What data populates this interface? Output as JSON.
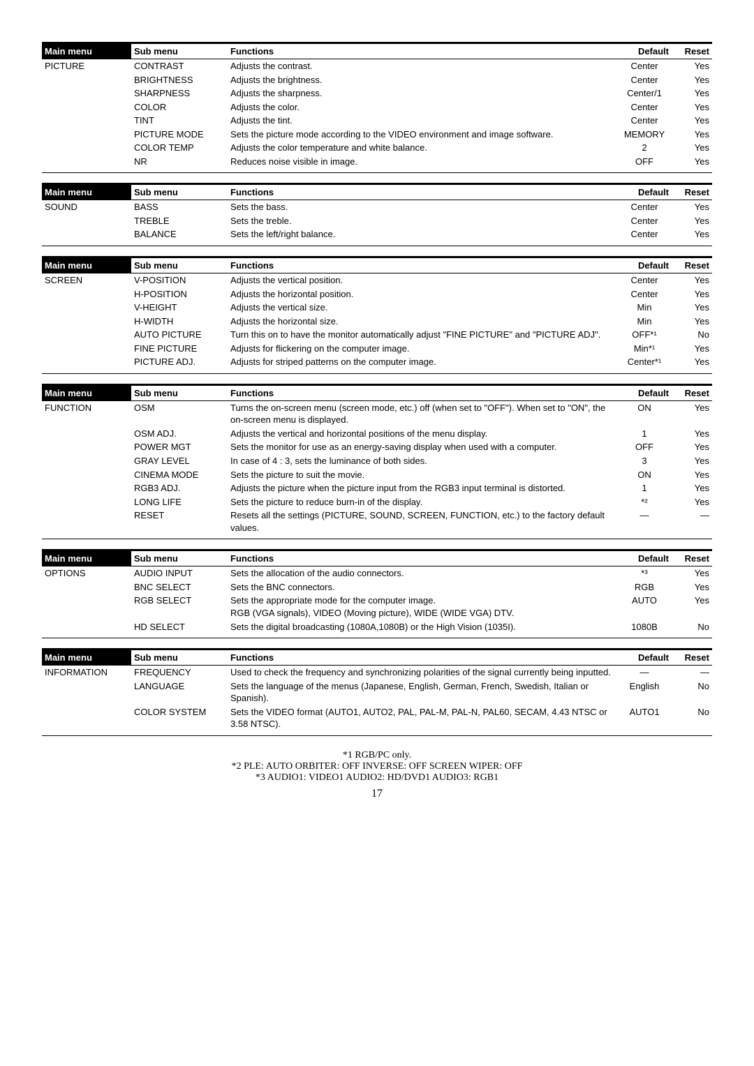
{
  "headers": {
    "main": "Main menu",
    "sub": "Sub menu",
    "func": "Functions",
    "def": "Default",
    "reset": "Reset"
  },
  "tables": [
    {
      "main": "PICTURE",
      "rows": [
        {
          "sub": "CONTRAST",
          "func": "Adjusts the contrast.",
          "def": "Center",
          "reset": "Yes"
        },
        {
          "sub": "BRIGHTNESS",
          "func": "Adjusts the brightness.",
          "def": "Center",
          "reset": "Yes"
        },
        {
          "sub": "SHARPNESS",
          "func": "Adjusts the sharpness.",
          "def": "Center/1",
          "reset": "Yes"
        },
        {
          "sub": "COLOR",
          "func": "Adjusts the color.",
          "def": "Center",
          "reset": "Yes"
        },
        {
          "sub": "TINT",
          "func": "Adjusts the tint.",
          "def": "Center",
          "reset": "Yes"
        },
        {
          "sub": "PICTURE MODE",
          "func": "Sets the picture mode according to the VIDEO environment and image software.",
          "def": "MEMORY",
          "reset": "Yes"
        },
        {
          "sub": "COLOR TEMP",
          "func": "Adjusts the color temperature and white balance.",
          "def": "2",
          "reset": "Yes"
        },
        {
          "sub": "NR",
          "func": "Reduces noise visible in image.",
          "def": "OFF",
          "reset": "Yes"
        }
      ]
    },
    {
      "main": "SOUND",
      "rows": [
        {
          "sub": "BASS",
          "func": "Sets the bass.",
          "def": "Center",
          "reset": "Yes"
        },
        {
          "sub": "TREBLE",
          "func": "Sets the treble.",
          "def": "Center",
          "reset": "Yes"
        },
        {
          "sub": "BALANCE",
          "func": "Sets the left/right balance.",
          "def": "Center",
          "reset": "Yes"
        }
      ]
    },
    {
      "main": "SCREEN",
      "rows": [
        {
          "sub": "V-POSITION",
          "func": "Adjusts the vertical position.",
          "def": "Center",
          "reset": "Yes"
        },
        {
          "sub": "H-POSITION",
          "func": "Adjusts the horizontal position.",
          "def": "Center",
          "reset": "Yes"
        },
        {
          "sub": "V-HEIGHT",
          "func": "Adjusts the vertical size.",
          "def": "Min",
          "reset": "Yes"
        },
        {
          "sub": "H-WIDTH",
          "func": "Adjusts the horizontal size.",
          "def": "Min",
          "reset": "Yes"
        },
        {
          "sub": "AUTO PICTURE",
          "func": "Turn this on to have the monitor automatically adjust \"FINE PICTURE\" and \"PICTURE ADJ\".",
          "def": "OFF*¹",
          "reset": "No"
        },
        {
          "sub": "FINE PICTURE",
          "func": "Adjusts for flickering on the computer image.",
          "def": "Min*¹",
          "reset": "Yes"
        },
        {
          "sub": "PICTURE ADJ.",
          "func": "Adjusts for striped patterns on the computer image.",
          "def": "Center*¹",
          "reset": "Yes"
        }
      ]
    },
    {
      "main": "FUNCTION",
      "rows": [
        {
          "sub": "OSM",
          "func": "Turns the on-screen menu (screen mode, etc.) off (when set to \"OFF\"). When set to \"ON\", the on-screen menu is displayed.",
          "def": "ON",
          "reset": "Yes"
        },
        {
          "sub": "OSM ADJ.",
          "func": "Adjusts the vertical and horizontal positions of the menu display.",
          "def": "1",
          "reset": "Yes"
        },
        {
          "sub": "POWER MGT",
          "func": "Sets the monitor for use as an energy-saving display when used with a computer.",
          "def": "OFF",
          "reset": "Yes"
        },
        {
          "sub": "GRAY LEVEL",
          "func": "In case of 4 : 3, sets the luminance of both sides.",
          "def": "3",
          "reset": "Yes"
        },
        {
          "sub": "CINEMA MODE",
          "func": "Sets the picture to suit the movie.",
          "def": "ON",
          "reset": "Yes"
        },
        {
          "sub": "RGB3 ADJ.",
          "func": "Adjusts the picture when the picture input from the RGB3 input terminal is distorted.",
          "def": "1",
          "reset": "Yes"
        },
        {
          "sub": "LONG LIFE",
          "func": "Sets the picture to reduce burn-in of the display.",
          "def": "*²",
          "reset": "Yes"
        },
        {
          "sub": "RESET",
          "func": "Resets all the settings (PICTURE, SOUND, SCREEN, FUNCTION, etc.) to the factory default values.",
          "def": "—",
          "reset": "—"
        }
      ]
    },
    {
      "main": "OPTIONS",
      "rows": [
        {
          "sub": "AUDIO INPUT",
          "func": "Sets the allocation of the audio connectors.",
          "def": "*³",
          "reset": "Yes"
        },
        {
          "sub": "BNC SELECT",
          "func": "Sets the BNC connectors.",
          "def": "RGB",
          "reset": "Yes"
        },
        {
          "sub": "RGB SELECT",
          "func": "Sets the appropriate mode for the computer image.\nRGB (VGA signals), VIDEO (Moving picture), WIDE (WIDE VGA) DTV.",
          "def": "AUTO",
          "reset": "Yes"
        },
        {
          "sub": "HD SELECT",
          "func": "Sets the digital broadcasting (1080A,1080B) or the High Vision (1035I).",
          "def": "1080B",
          "reset": "No"
        }
      ]
    },
    {
      "main": "INFORMATION",
      "rows": [
        {
          "sub": "FREQUENCY",
          "func": "Used to check the frequency and synchronizing polarities of the signal currently being inputted.",
          "def": "—",
          "reset": "—"
        },
        {
          "sub": "LANGUAGE",
          "func": "Sets the language of the menus (Japanese, English, German, French, Swedish, Italian or Spanish).",
          "def": "English",
          "reset": "No"
        },
        {
          "sub": "COLOR SYSTEM",
          "func": "Sets the VIDEO format (AUTO1, AUTO2, PAL, PAL-M, PAL-N, PAL60, SECAM, 4.43 NTSC or 3.58 NTSC).",
          "def": "AUTO1",
          "reset": "No"
        }
      ]
    }
  ],
  "footnotes": {
    "f1": "*1 RGB/PC only.",
    "f2": "*2 PLE: AUTO  ORBITER: OFF  INVERSE: OFF SCREEN WIPER: OFF",
    "f3": "*3 AUDIO1: VIDEO1 AUDIO2: HD/DVD1 AUDIO3: RGB1"
  },
  "page": "17"
}
